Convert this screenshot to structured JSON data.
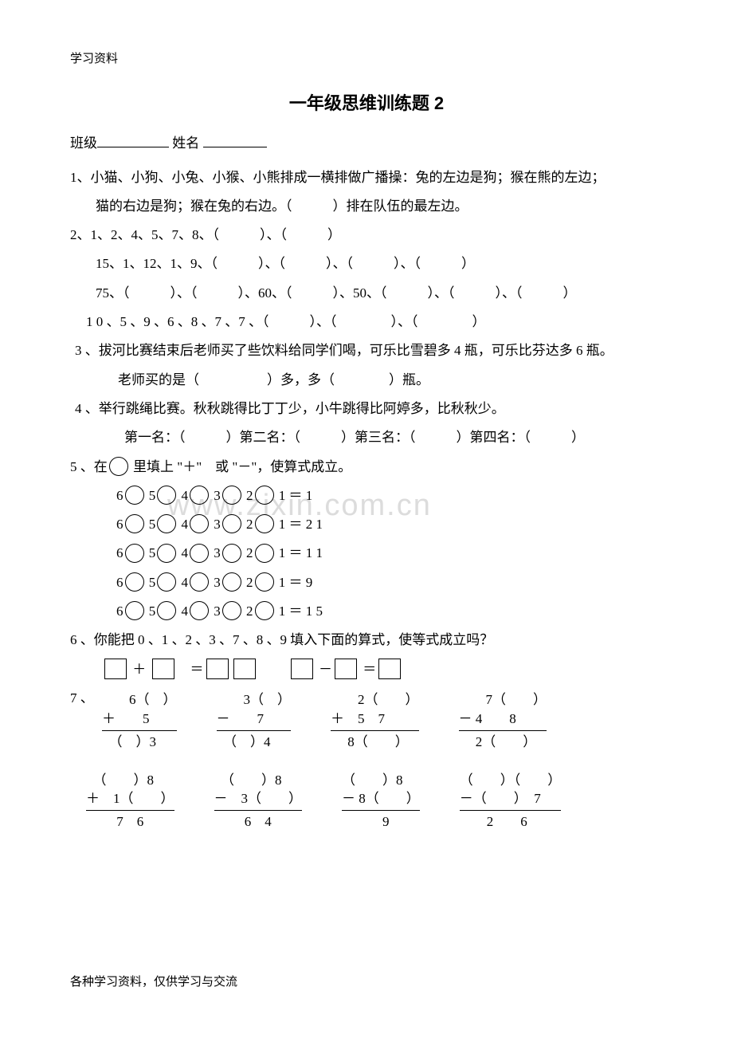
{
  "header": "学习资料",
  "title": "一年级思维训练题 2",
  "class_label": "班级",
  "name_label": "姓名",
  "q1": "1、小猫、小狗、小兔、小猴、小熊排成一横排做广播操：兔的左边是狗；猴在熊的左边；",
  "q1b": "猫的右边是狗；猴在兔的右边。（　　　）排在队伍的最左边。",
  "q2a": "2、1、2、4、5、7、8、（　　　）、（　　　）",
  "q2b": "15、1、12、1、9、（　　　）、（　　　）、（　　　）、（　　　）",
  "q2c": "75、（　　　）、（　　　）、60、（　　　）、50、（　　　）、（　　　）、（　　　）",
  "q2d": "1 0 、5 、9 、6 、8 、7 、7 、（　　　）、（　　　　）、（　　　　）",
  "q3": "3 、拔河比赛结束后老师买了些饮料给同学们喝，可乐比雪碧多 4 瓶，可乐比芬达多 6 瓶。",
  "q3b": "老师买的是（　　　　　）多，多（　　　　）瓶。",
  "q4": "4 、举行跳绳比赛。秋秋跳得比丁丁少，小牛跳得比阿婷多，比秋秋少。",
  "q4b": "第一名：（　　　）第二名：（　　　）第三名：（　　　）第四名：（　　　）",
  "q5_intro_a": "5 、在",
  "q5_intro_b": " 里填上 \"＋\"　或 \"－\"，使算式成立。",
  "q5_rhs": [
    "1 ＝ 1",
    "1 ＝ 2 1",
    "1 ＝ 1 1",
    "1 ＝ 9",
    "1 ＝ 1 5"
  ],
  "q6": "6 、你能把 0 、1 、2 、3 、7 、8 、9 填入下面的算式，使等式成立吗？",
  "q7_label": "7 、",
  "arith_top": [
    {
      "r1": "　　6（　）",
      "r2": "＋　　5　",
      "r3": "　（　）3"
    },
    {
      "r1": "　　3（　）",
      "r2": "－　　7　",
      "r3": "　（　）4"
    },
    {
      "r1": "　　2（　　）",
      "r2": "＋　5　7　",
      "r3": "　 8（　　）"
    },
    {
      "r1": "　　7（　　）",
      "r2": "－ 4　　8　",
      "r3": "　 2（　　）"
    }
  ],
  "arith_bot": [
    {
      "r1": "　（　　）8",
      "r2": "＋　1（　　）",
      "r3": "　　 7　6"
    },
    {
      "r1": "　（　　）8",
      "r2": "－　3（　　）",
      "r3": "　　 6　4"
    },
    {
      "r1": "（　　）8",
      "r2": "－ 8（　　）",
      "r3": "　　　9"
    },
    {
      "r1": "（　　）（　　）",
      "r2": "－（　　）　7　",
      "r3": "　　2　　6"
    }
  ],
  "watermark": "www.zixin.com.cn",
  "footer": "各种学习资料，仅供学习与交流"
}
